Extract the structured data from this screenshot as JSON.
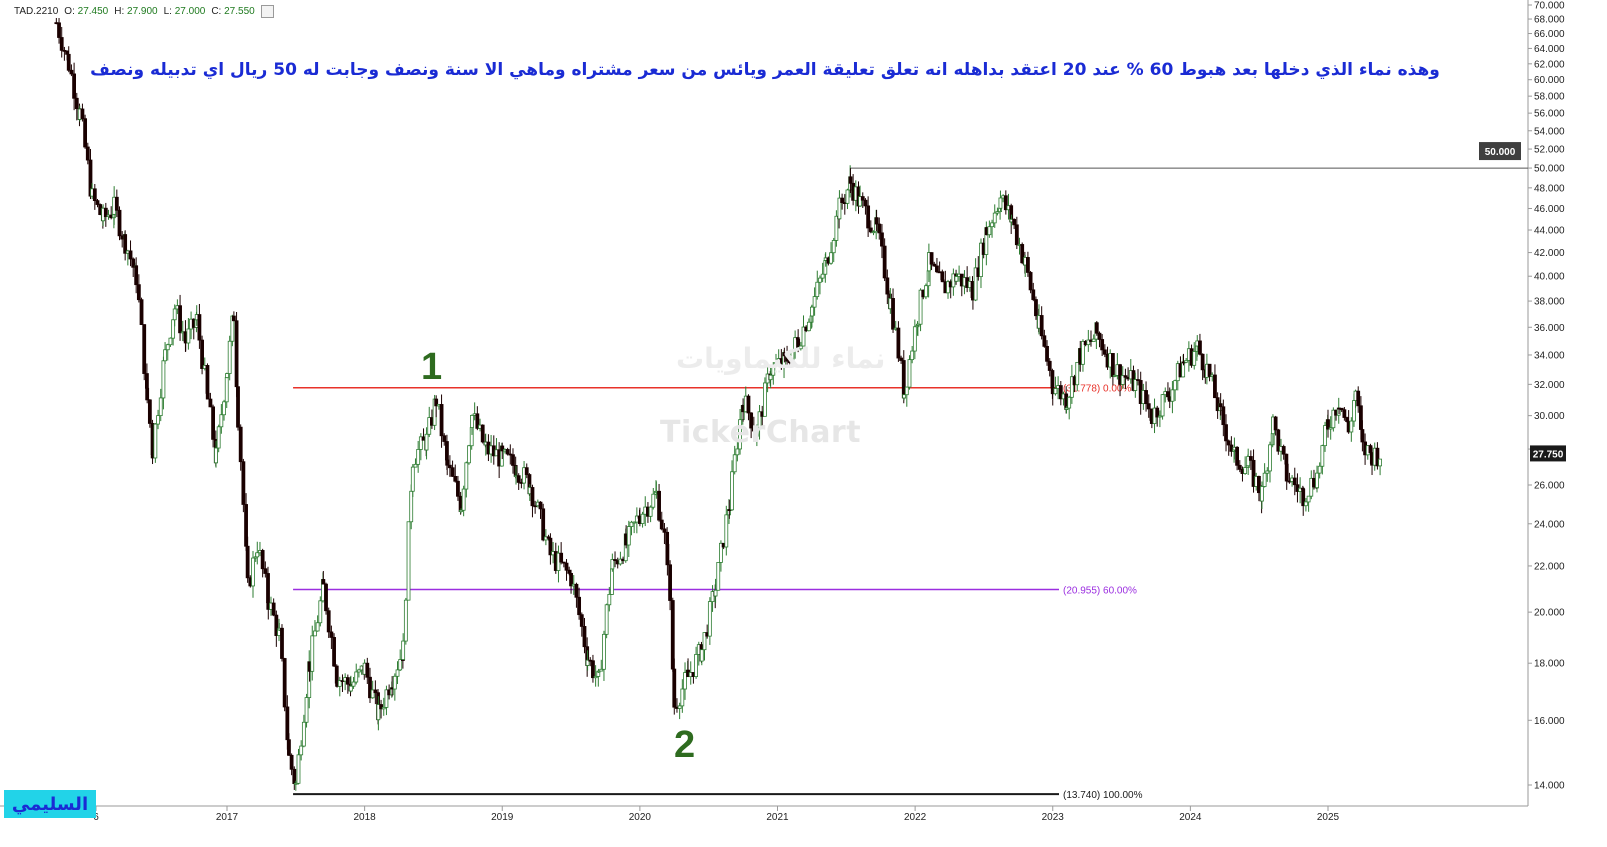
{
  "header": {
    "symbol": "TAD.2210",
    "open_label": "O:",
    "open": "27.450",
    "high_label": "H:",
    "high": "27.900",
    "low_label": "L:",
    "low": "27.000",
    "close_label": "C:",
    "close": "27.550"
  },
  "annotation_text": "وهذه نماء الذي دخلها بعد هبوط 60 %  عند 20 اعتقد بداهله انه تعلق تعليقة العمر ويائس من سعر مشتراه وماهي الا سنة ونصف وجابت له 50 ريال اي تدبيله ونصف",
  "author_badge": "السليمي",
  "watermark": {
    "logo_text": "TickerChart",
    "arabic_text": "نماء للكيماويات"
  },
  "markers": [
    {
      "label": "1",
      "color": "#2e6b1f"
    },
    {
      "label": "2",
      "color": "#2e6b1f"
    }
  ],
  "chart_data": {
    "type": "candlestick",
    "symbol": "TAD.2210",
    "y_axis": {
      "ylim": [
        13.2,
        70.0
      ],
      "scale": "log",
      "tick_labels": [
        "70.000",
        "68.000",
        "66.000",
        "64.000",
        "62.000",
        "60.000",
        "58.000",
        "56.000",
        "54.000",
        "52.000",
        "50.000",
        "48.000",
        "46.000",
        "44.000",
        "42.000",
        "40.000",
        "38.000",
        "36.000",
        "34.000",
        "32.000",
        "30.000",
        "28.000",
        "26.000",
        "24.000",
        "22.000",
        "20.000",
        "18.000",
        "16.000",
        "14.000"
      ],
      "tick_values": [
        70,
        68,
        66,
        64,
        62,
        60,
        58,
        56,
        54,
        52,
        50,
        48,
        46,
        44,
        42,
        40,
        38,
        36,
        34,
        32,
        30,
        28,
        26,
        24,
        22,
        20,
        18,
        16,
        14
      ]
    },
    "x_axis": {
      "tick_labels": [
        "6",
        "2017",
        "2018",
        "2019",
        "2020",
        "2021",
        "2022",
        "2023",
        "2024",
        "2025"
      ],
      "tick_dates": [
        2016.0,
        2017.0,
        2018.0,
        2019.0,
        2020.0,
        2021.0,
        2022.0,
        2023.0,
        2024.0,
        2025.0
      ]
    },
    "fib_levels": [
      {
        "value": 31.778,
        "label": "(31.778) 0.00%",
        "color": "#e8322a",
        "start_date": 2017.48
      },
      {
        "value": 20.955,
        "label": "(20.955) 60.00%",
        "color": "#9b2ee0",
        "start_date": 2017.48
      },
      {
        "value": 13.74,
        "label": "(13.740) 100.00%",
        "color": "#1a1a1a",
        "start_date": 2017.48
      }
    ],
    "horizontal_line": {
      "value": 50.0,
      "label": "50.000",
      "color": "#555555",
      "start_date": 2021.53
    },
    "last_price": {
      "value": 27.75,
      "label": "27.750"
    },
    "price_path": [
      [
        2015.76,
        67.5
      ],
      [
        2015.85,
        62.0
      ],
      [
        2015.93,
        56.0
      ],
      [
        2016.02,
        47.0
      ],
      [
        2016.1,
        45.0
      ],
      [
        2016.18,
        46.0
      ],
      [
        2016.26,
        43.0
      ],
      [
        2016.34,
        40.0
      ],
      [
        2016.42,
        31.0
      ],
      [
        2016.46,
        28.0
      ],
      [
        2016.55,
        34.0
      ],
      [
        2016.62,
        37.5
      ],
      [
        2016.7,
        35.0
      ],
      [
        2016.78,
        36.5
      ],
      [
        2016.86,
        31.0
      ],
      [
        2016.92,
        27.5
      ],
      [
        2017.0,
        33.0
      ],
      [
        2017.05,
        37.0
      ],
      [
        2017.08,
        30.0
      ],
      [
        2017.15,
        21.0
      ],
      [
        2017.22,
        23.0
      ],
      [
        2017.3,
        20.5
      ],
      [
        2017.38,
        19.0
      ],
      [
        2017.45,
        14.8
      ],
      [
        2017.5,
        14.0
      ],
      [
        2017.6,
        18.0
      ],
      [
        2017.7,
        21.0
      ],
      [
        2017.8,
        17.5
      ],
      [
        2017.9,
        17.2
      ],
      [
        2018.0,
        17.8
      ],
      [
        2018.1,
        16.2
      ],
      [
        2018.2,
        17.5
      ],
      [
        2018.28,
        18.5
      ],
      [
        2018.35,
        27.5
      ],
      [
        2018.45,
        28.5
      ],
      [
        2018.52,
        31.0
      ],
      [
        2018.6,
        27.0
      ],
      [
        2018.7,
        25.0
      ],
      [
        2018.78,
        30.0
      ],
      [
        2018.88,
        28.0
      ],
      [
        2019.0,
        27.5
      ],
      [
        2019.1,
        27.0
      ],
      [
        2019.2,
        26.0
      ],
      [
        2019.35,
        22.5
      ],
      [
        2019.5,
        21.5
      ],
      [
        2019.62,
        18.2
      ],
      [
        2019.7,
        17.3
      ],
      [
        2019.8,
        22.0
      ],
      [
        2019.9,
        23.0
      ],
      [
        2020.0,
        24.5
      ],
      [
        2020.12,
        25.5
      ],
      [
        2020.2,
        22.5
      ],
      [
        2020.25,
        16.5
      ],
      [
        2020.35,
        17.5
      ],
      [
        2020.45,
        18.5
      ],
      [
        2020.55,
        21.0
      ],
      [
        2020.65,
        25.0
      ],
      [
        2020.75,
        31.0
      ],
      [
        2020.85,
        29.0
      ],
      [
        2020.95,
        33.0
      ],
      [
        2021.05,
        33.5
      ],
      [
        2021.15,
        35.0
      ],
      [
        2021.25,
        37.5
      ],
      [
        2021.35,
        41.0
      ],
      [
        2021.45,
        46.0
      ],
      [
        2021.53,
        48.5
      ],
      [
        2021.6,
        46.5
      ],
      [
        2021.72,
        44.0
      ],
      [
        2021.82,
        38.0
      ],
      [
        2021.92,
        31.5
      ],
      [
        2022.02,
        37.0
      ],
      [
        2022.1,
        41.0
      ],
      [
        2022.2,
        39.0
      ],
      [
        2022.3,
        40.0
      ],
      [
        2022.42,
        39.0
      ],
      [
        2022.52,
        44.0
      ],
      [
        2022.62,
        47.0
      ],
      [
        2022.7,
        45.0
      ],
      [
        2022.8,
        41.0
      ],
      [
        2022.9,
        36.0
      ],
      [
        2023.0,
        32.0
      ],
      [
        2023.1,
        31.0
      ],
      [
        2023.2,
        34.0
      ],
      [
        2023.32,
        35.5
      ],
      [
        2023.45,
        33.0
      ],
      [
        2023.6,
        32.0
      ],
      [
        2023.72,
        30.0
      ],
      [
        2023.85,
        31.5
      ],
      [
        2023.95,
        33.5
      ],
      [
        2024.05,
        34.5
      ],
      [
        2024.12,
        33.0
      ],
      [
        2024.22,
        30.0
      ],
      [
        2024.32,
        27.5
      ],
      [
        2024.42,
        27.0
      ],
      [
        2024.52,
        25.5
      ],
      [
        2024.6,
        29.5
      ],
      [
        2024.7,
        26.5
      ],
      [
        2024.82,
        25.5
      ],
      [
        2024.92,
        26.5
      ],
      [
        2025.0,
        29.5
      ],
      [
        2025.08,
        31.0
      ],
      [
        2025.15,
        29.0
      ],
      [
        2025.2,
        31.5
      ],
      [
        2025.25,
        28.0
      ],
      [
        2025.32,
        27.7
      ],
      [
        2025.38,
        27.75
      ]
    ]
  },
  "colors": {
    "up_candle": "#2e7d32",
    "down_candle": "#1a0000",
    "axis_line": "#9a9a9a",
    "annotation_text": "#1a2bd4",
    "badge_bg": "#22d3e8"
  }
}
